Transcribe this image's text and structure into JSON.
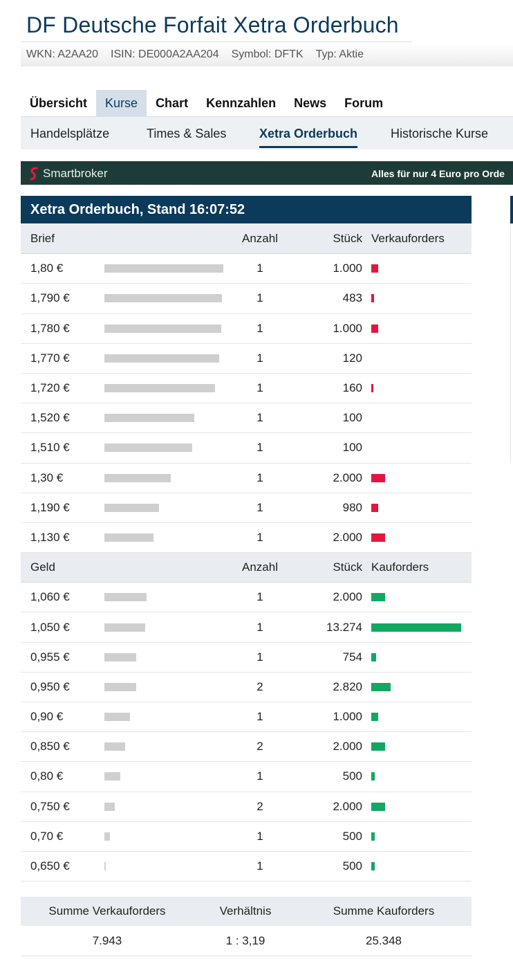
{
  "page": {
    "title": "DF Deutsche Forfait Xetra Orderbuch",
    "meta": [
      "WKN: A2AA20",
      "ISIN: DE000A2AA204",
      "Symbol: DFTK",
      "Typ: Aktie"
    ]
  },
  "main_nav": [
    "Übersicht",
    "Kurse",
    "Chart",
    "Kennzahlen",
    "News",
    "Forum"
  ],
  "main_nav_active": "Kurse",
  "sub_nav": [
    "Handelsplätze",
    "Times & Sales",
    "Xetra Orderbuch",
    "Historische Kurse"
  ],
  "sub_nav_active": "Xetra Orderbuch",
  "banner": {
    "brand": "Smartbroker",
    "slogan": "Alles für nur 4 Euro pro Orde"
  },
  "orderbook": {
    "title": "Xetra Orderbuch, Stand 16:07:52",
    "ask_header": {
      "label": "Brief",
      "count": "Anzahl",
      "qty": "Stück",
      "orders": "Verkauforders"
    },
    "asks": [
      {
        "price": "1,80 €",
        "count": "1",
        "qty": "1.000",
        "depth": 1.0,
        "share": 0.077
      },
      {
        "price": "1,790 €",
        "count": "1",
        "qty": "483",
        "depth": 0.99,
        "share": 0.031
      },
      {
        "price": "1,780 €",
        "count": "1",
        "qty": "1.000",
        "depth": 0.98,
        "share": 0.077
      },
      {
        "price": "1,770 €",
        "count": "1",
        "qty": "120",
        "depth": 0.965,
        "share": 0
      },
      {
        "price": "1,720 €",
        "count": "1",
        "qty": "160",
        "depth": 0.93,
        "share": 0.012
      },
      {
        "price": "1,520 €",
        "count": "1",
        "qty": "100",
        "depth": 0.755,
        "share": 0
      },
      {
        "price": "1,510 €",
        "count": "1",
        "qty": "100",
        "depth": 0.74,
        "share": 0
      },
      {
        "price": "1,30 €",
        "count": "1",
        "qty": "2.000",
        "depth": 0.56,
        "share": 0.15
      },
      {
        "price": "1,190 €",
        "count": "1",
        "qty": "980",
        "depth": 0.46,
        "share": 0.077
      },
      {
        "price": "1,130 €",
        "count": "1",
        "qty": "2.000",
        "depth": 0.415,
        "share": 0.15
      }
    ],
    "bid_header": {
      "label": "Geld",
      "count": "Anzahl",
      "qty": "Stück",
      "orders": "Kauforders"
    },
    "bids": [
      {
        "price": "1,060 €",
        "count": "1",
        "qty": "2.000",
        "depth": 0.355,
        "share": 0.15
      },
      {
        "price": "1,050 €",
        "count": "1",
        "qty": "13.274",
        "depth": 0.345,
        "share": 1.0
      },
      {
        "price": "0,955 €",
        "count": "1",
        "qty": "754",
        "depth": 0.265,
        "share": 0.057
      },
      {
        "price": "0,950 €",
        "count": "2",
        "qty": "2.820",
        "depth": 0.265,
        "share": 0.212
      },
      {
        "price": "0,90 €",
        "count": "1",
        "qty": "1.000",
        "depth": 0.215,
        "share": 0.077
      },
      {
        "price": "0,850 €",
        "count": "2",
        "qty": "2.000",
        "depth": 0.175,
        "share": 0.15
      },
      {
        "price": "0,80 €",
        "count": "1",
        "qty": "500",
        "depth": 0.135,
        "share": 0.038
      },
      {
        "price": "0,750 €",
        "count": "2",
        "qty": "2.000",
        "depth": 0.085,
        "share": 0.15
      },
      {
        "price": "0,70 €",
        "count": "1",
        "qty": "500",
        "depth": 0.045,
        "share": 0.038
      },
      {
        "price": "0,650 €",
        "count": "1",
        "qty": "500",
        "depth": 0.01,
        "share": 0.038
      }
    ]
  },
  "summary": {
    "headers": [
      "Summe Verkauforders",
      "Verhältnis",
      "Summe Kauforders"
    ],
    "values": [
      "7.943",
      "1 : 3,19",
      "25.348"
    ]
  },
  "colors": {
    "primary": "#0b3a5b",
    "sell": "#e3173e",
    "buy": "#12a862",
    "depth_bar": "#cfcfcf",
    "banner_bg": "#1e3c37"
  }
}
